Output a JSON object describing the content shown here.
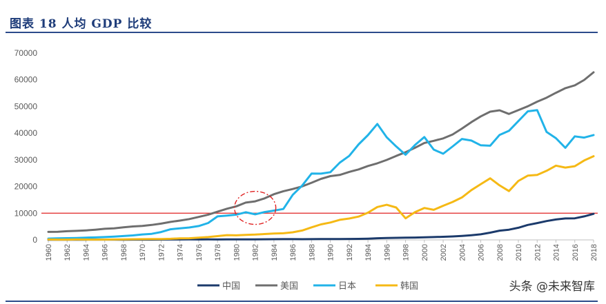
{
  "header": {
    "title": "图表 18   人均 GDP 比较"
  },
  "watermark": "头条 @未来智库",
  "chart_data": {
    "type": "line",
    "title": "人均 GDP 比较",
    "xlabel": "",
    "ylabel": "",
    "ylim": [
      0,
      70000
    ],
    "yticks": [
      0,
      10000,
      20000,
      30000,
      40000,
      50000,
      60000,
      70000
    ],
    "ytick_labels": [
      "0",
      "10000",
      "20000",
      "30000",
      "40000",
      "50000",
      "60000",
      "70000"
    ],
    "xlim": [
      1960,
      2018
    ],
    "xtick_labels": [
      "1960",
      "1962",
      "1964",
      "1966",
      "1968",
      "1970",
      "1972",
      "1974",
      "1976",
      "1978",
      "1980",
      "1982",
      "1984",
      "1986",
      "1988",
      "1990",
      "1992",
      "1994",
      "1996",
      "1998",
      "2000",
      "2002",
      "2004",
      "2006",
      "2008",
      "2010",
      "2012",
      "2014",
      "2016",
      "2018"
    ],
    "grid": false,
    "legend_position": "bottom",
    "reference_line": {
      "y": 10000,
      "color": "#e02020"
    },
    "annotation": {
      "type": "dashed-ellipse",
      "center_x": 1982,
      "center_y": 12000,
      "color": "#e02020"
    },
    "x": [
      1960,
      1961,
      1962,
      1963,
      1964,
      1965,
      1966,
      1967,
      1968,
      1969,
      1970,
      1971,
      1972,
      1973,
      1974,
      1975,
      1976,
      1977,
      1978,
      1979,
      1980,
      1981,
      1982,
      1983,
      1984,
      1985,
      1986,
      1987,
      1988,
      1989,
      1990,
      1991,
      1992,
      1993,
      1994,
      1995,
      1996,
      1997,
      1998,
      1999,
      2000,
      2001,
      2002,
      2003,
      2004,
      2005,
      2006,
      2007,
      2008,
      2009,
      2010,
      2011,
      2012,
      2013,
      2014,
      2015,
      2016,
      2017,
      2018
    ],
    "series": [
      {
        "name": "中国",
        "color": "#1b3a6b",
        "values": [
          90,
          80,
          70,
          75,
          85,
          100,
          105,
          95,
          90,
          100,
          110,
          115,
          130,
          155,
          160,
          180,
          165,
          185,
          155,
          185,
          195,
          200,
          205,
          220,
          250,
          290,
          280,
          250,
          280,
          310,
          320,
          330,
          365,
          375,
          470,
          610,
          710,
          780,
          830,
          870,
          960,
          1050,
          1150,
          1290,
          1510,
          1750,
          2100,
          2700,
          3470,
          3830,
          4550,
          5600,
          6300,
          7050,
          7650,
          8030,
          8080,
          8800,
          9770
        ]
      },
      {
        "name": "美国",
        "color": "#6e6e6e",
        "values": [
          3000,
          3060,
          3250,
          3380,
          3570,
          3830,
          4150,
          4340,
          4700,
          5030,
          5230,
          5610,
          6090,
          6730,
          7230,
          7800,
          8590,
          9450,
          10560,
          11670,
          12570,
          13980,
          14430,
          15560,
          17130,
          18240,
          19070,
          20040,
          21420,
          22860,
          23890,
          24340,
          25470,
          26390,
          27690,
          28690,
          29970,
          31460,
          32850,
          34510,
          36330,
          37130,
          38020,
          39490,
          41720,
          44120,
          46300,
          48050,
          48570,
          47190,
          48650,
          50070,
          51780,
          53290,
          55120,
          56850,
          57910,
          59930,
          62800
        ]
      },
      {
        "name": "日本",
        "color": "#21b3e8",
        "values": [
          480,
          560,
          640,
          720,
          840,
          920,
          1060,
          1230,
          1450,
          1670,
          2040,
          2270,
          2950,
          3990,
          4350,
          4660,
          5200,
          6340,
          8820,
          9100,
          9460,
          10360,
          9580,
          10430,
          10980,
          11580,
          16880,
          20360,
          24860,
          24810,
          25360,
          28920,
          31460,
          35770,
          39270,
          43440,
          38440,
          35020,
          31900,
          35550,
          38530,
          33850,
          32290,
          35010,
          37820,
          37220,
          35430,
          35280,
          39340,
          40860,
          44510,
          48170,
          48600,
          40450,
          38110,
          34520,
          38790,
          38330,
          39290
        ]
      },
      {
        "name": "韩国",
        "color": "#f5b915",
        "values": [
          160,
          95,
          105,
          145,
          125,
          110,
          135,
          165,
          200,
          250,
          290,
          310,
          330,
          410,
          560,
          620,
          840,
          1060,
          1410,
          1780,
          1710,
          1880,
          1990,
          2200,
          2410,
          2480,
          2830,
          3510,
          4690,
          5810,
          6510,
          7520,
          8000,
          8740,
          10200,
          12330,
          13140,
          12130,
          8090,
          10410,
          11950,
          11250,
          12780,
          14210,
          15910,
          18640,
          20890,
          23060,
          20430,
          18290,
          22090,
          24080,
          24370,
          25890,
          27810,
          27100,
          27610,
          29750,
          31360
        ]
      }
    ]
  }
}
